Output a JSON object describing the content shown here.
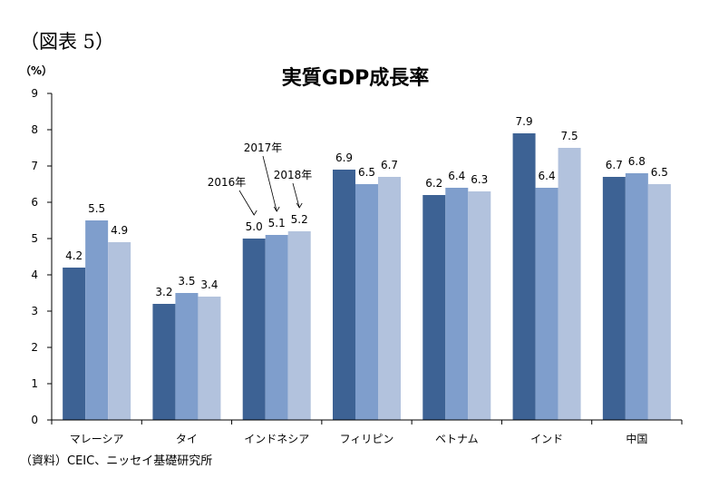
{
  "figure_label": "（図表 5）",
  "source": "（資料）CEIC、ニッセイ基礎研究所",
  "colors": {
    "s2016": "#3d6294",
    "s2017": "#7f9ecc",
    "s2018": "#b2c2dd"
  },
  "chart_data": {
    "type": "bar",
    "title": "実質GDP成長率",
    "ylabel": "（%）",
    "xlabel": "",
    "ylim": [
      0,
      9
    ],
    "yticks": [
      0,
      1,
      2,
      3,
      4,
      5,
      6,
      7,
      8,
      9
    ],
    "grid": false,
    "categories": [
      "マレーシア",
      "タイ",
      "インドネシア",
      "フィリピン",
      "ベトナム",
      "インド",
      "中国"
    ],
    "series": [
      {
        "name": "2016年",
        "values": [
          4.2,
          3.2,
          5.0,
          6.9,
          6.2,
          7.9,
          6.7
        ]
      },
      {
        "name": "2017年",
        "values": [
          5.5,
          3.5,
          5.1,
          6.5,
          6.4,
          6.4,
          6.8
        ]
      },
      {
        "name": "2018年",
        "values": [
          4.9,
          3.4,
          5.2,
          6.7,
          6.3,
          7.5,
          6.5
        ]
      }
    ],
    "annotations": [
      "2016年",
      "2017年",
      "2018年"
    ]
  }
}
